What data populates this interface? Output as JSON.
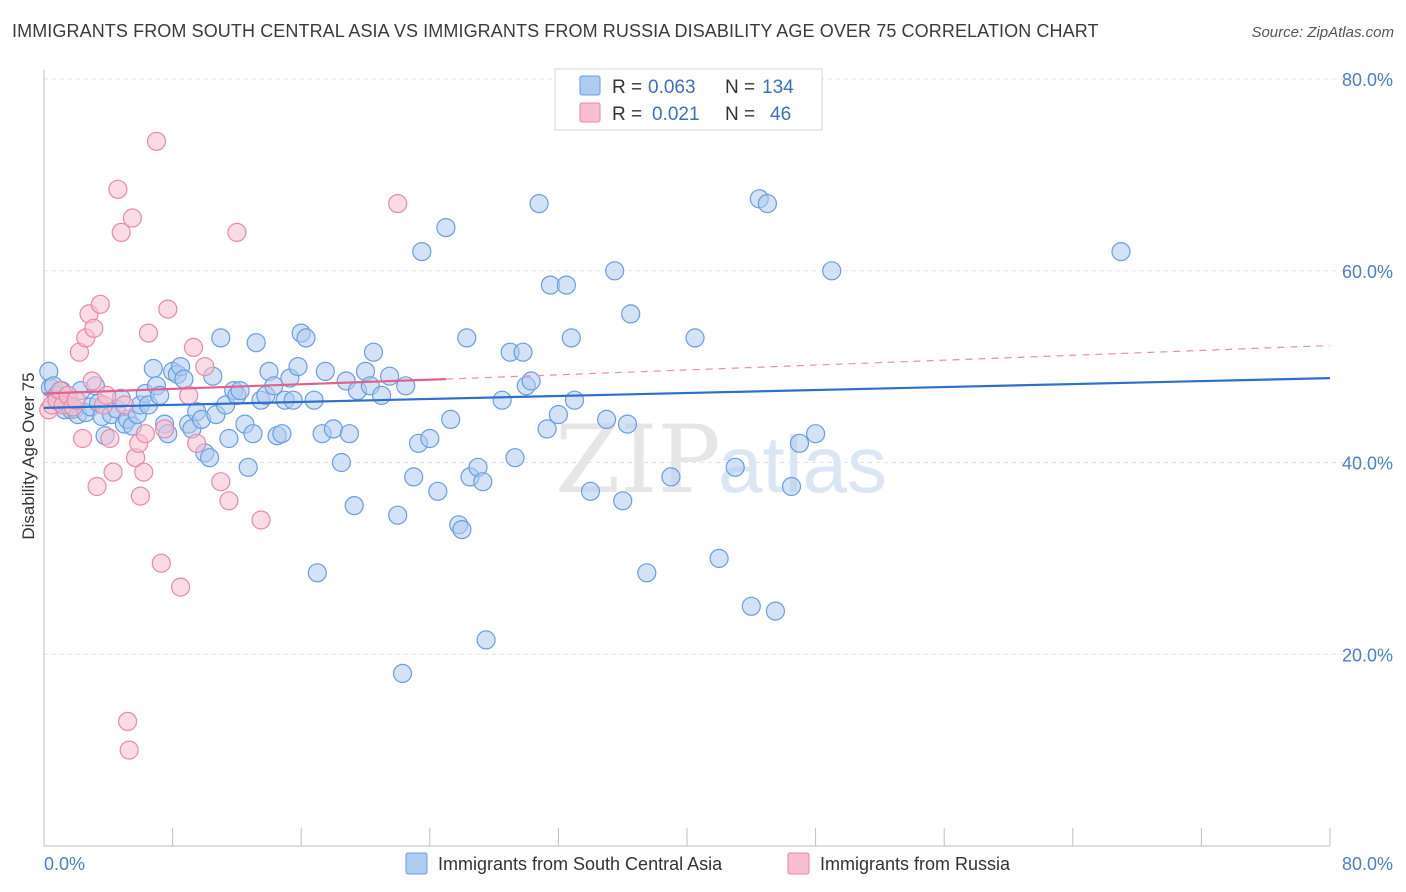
{
  "header": {
    "title": "IMMIGRANTS FROM SOUTH CENTRAL ASIA VS IMMIGRANTS FROM RUSSIA DISABILITY AGE OVER 75 CORRELATION CHART",
    "source": "Source: ZipAtlas.com"
  },
  "watermark": {
    "zip": "ZIP",
    "atlas": "atlas"
  },
  "legend": {
    "r_label": "R =",
    "n_label": "N =",
    "items": [
      {
        "r": "0.063",
        "n": "134",
        "fill": "#aecbf0",
        "stroke": "#6a9ee0"
      },
      {
        "r": "0.021",
        "n": "46",
        "fill": "#f7bfd0",
        "stroke": "#e88aa8"
      }
    ]
  },
  "chart_data": {
    "type": "scatter",
    "title": "IMMIGRANTS FROM SOUTH CENTRAL ASIA VS IMMIGRANTS FROM RUSSIA DISABILITY AGE OVER 75 CORRELATION CHART",
    "xlabel": "",
    "ylabel": "Disability Age Over 75",
    "xlim": [
      0,
      80
    ],
    "ylim": [
      0,
      80
    ],
    "y_ticks": [
      {
        "value": 20,
        "label": "20.0%"
      },
      {
        "value": 40,
        "label": "40.0%"
      },
      {
        "value": 60,
        "label": "60.0%"
      },
      {
        "value": 80,
        "label": "80.0%"
      }
    ],
    "x_tick_labels": {
      "min": "0.0%",
      "max": "80.0%"
    },
    "grid": true,
    "legend_position": "top-center",
    "series": [
      {
        "name": "Immigrants from South Central Asia",
        "color": "#6a9ee0",
        "fill": "#aecbf0",
        "trend": {
          "x": [
            0,
            80
          ],
          "y": [
            45.7,
            48.8
          ]
        },
        "points": [
          [
            0.3,
            49.5
          ],
          [
            0.4,
            47.8
          ],
          [
            0.6,
            48.0
          ],
          [
            0.8,
            47.0
          ],
          [
            1.0,
            46.2
          ],
          [
            1.1,
            47.5
          ],
          [
            1.2,
            46.0
          ],
          [
            1.3,
            45.5
          ],
          [
            1.5,
            46.0
          ],
          [
            1.7,
            45.5
          ],
          [
            1.9,
            45.6
          ],
          [
            2.1,
            45.0
          ],
          [
            2.3,
            47.5
          ],
          [
            2.6,
            45.2
          ],
          [
            2.9,
            45.8
          ],
          [
            3.2,
            48.0
          ],
          [
            3.4,
            46.2
          ],
          [
            3.6,
            44.8
          ],
          [
            3.8,
            42.8
          ],
          [
            4.2,
            45.0
          ],
          [
            4.5,
            45.6
          ],
          [
            4.8,
            46.7
          ],
          [
            5.0,
            44.0
          ],
          [
            5.2,
            44.5
          ],
          [
            5.5,
            43.8
          ],
          [
            5.8,
            45.0
          ],
          [
            6.0,
            46.0
          ],
          [
            6.3,
            47.2
          ],
          [
            6.5,
            46.0
          ],
          [
            6.8,
            49.8
          ],
          [
            7.0,
            48.0
          ],
          [
            7.2,
            47.0
          ],
          [
            7.5,
            44.0
          ],
          [
            7.7,
            43.0
          ],
          [
            8.0,
            49.5
          ],
          [
            8.3,
            49.2
          ],
          [
            8.5,
            50.0
          ],
          [
            8.7,
            48.7
          ],
          [
            9.0,
            44.0
          ],
          [
            9.2,
            43.5
          ],
          [
            9.5,
            45.3
          ],
          [
            9.8,
            44.5
          ],
          [
            10.0,
            41.0
          ],
          [
            10.3,
            40.5
          ],
          [
            10.5,
            49.0
          ],
          [
            10.7,
            45.0
          ],
          [
            11.0,
            53.0
          ],
          [
            11.3,
            46.0
          ],
          [
            11.5,
            42.5
          ],
          [
            11.8,
            47.5
          ],
          [
            12.0,
            47.0
          ],
          [
            12.2,
            47.5
          ],
          [
            12.5,
            44.0
          ],
          [
            12.7,
            39.5
          ],
          [
            13.0,
            43.0
          ],
          [
            13.2,
            52.5
          ],
          [
            13.5,
            46.5
          ],
          [
            13.8,
            47.0
          ],
          [
            14.0,
            49.5
          ],
          [
            14.3,
            48.0
          ],
          [
            14.5,
            42.8
          ],
          [
            14.8,
            43.0
          ],
          [
            15.0,
            46.5
          ],
          [
            15.3,
            48.8
          ],
          [
            15.5,
            46.5
          ],
          [
            15.8,
            50.0
          ],
          [
            16.0,
            53.5
          ],
          [
            16.3,
            53.0
          ],
          [
            16.8,
            46.5
          ],
          [
            17.0,
            28.5
          ],
          [
            17.3,
            43.0
          ],
          [
            17.5,
            49.5
          ],
          [
            18.0,
            43.5
          ],
          [
            18.5,
            40.0
          ],
          [
            18.8,
            48.5
          ],
          [
            19.0,
            43.0
          ],
          [
            19.3,
            35.5
          ],
          [
            19.5,
            47.5
          ],
          [
            20.0,
            49.5
          ],
          [
            20.3,
            48.0
          ],
          [
            20.5,
            51.5
          ],
          [
            21.0,
            47.0
          ],
          [
            21.5,
            49.0
          ],
          [
            22.0,
            34.5
          ],
          [
            22.3,
            18.0
          ],
          [
            22.5,
            48.0
          ],
          [
            23.0,
            38.5
          ],
          [
            23.3,
            42.0
          ],
          [
            23.5,
            62.0
          ],
          [
            24.0,
            42.5
          ],
          [
            24.5,
            37.0
          ],
          [
            25.0,
            64.5
          ],
          [
            25.3,
            44.5
          ],
          [
            25.8,
            33.5
          ],
          [
            26.0,
            33.0
          ],
          [
            26.3,
            53.0
          ],
          [
            26.5,
            38.5
          ],
          [
            27.0,
            39.5
          ],
          [
            27.3,
            38.0
          ],
          [
            27.5,
            21.5
          ],
          [
            28.5,
            46.5
          ],
          [
            29.0,
            51.5
          ],
          [
            29.3,
            40.5
          ],
          [
            29.8,
            51.5
          ],
          [
            30.0,
            48.0
          ],
          [
            30.3,
            48.5
          ],
          [
            30.8,
            67.0
          ],
          [
            31.3,
            43.5
          ],
          [
            31.5,
            58.5
          ],
          [
            32.0,
            45.0
          ],
          [
            32.5,
            58.5
          ],
          [
            32.8,
            53.0
          ],
          [
            33.0,
            46.5
          ],
          [
            34.0,
            37.0
          ],
          [
            35.0,
            44.5
          ],
          [
            35.5,
            60.0
          ],
          [
            36.0,
            36.0
          ],
          [
            36.3,
            44.0
          ],
          [
            36.5,
            55.5
          ],
          [
            37.5,
            28.5
          ],
          [
            38.0,
            77.0
          ],
          [
            39.0,
            38.5
          ],
          [
            40.5,
            53.0
          ],
          [
            42.0,
            30.0
          ],
          [
            43.0,
            39.5
          ],
          [
            44.0,
            25.0
          ],
          [
            44.5,
            67.5
          ],
          [
            45.0,
            67.0
          ],
          [
            45.5,
            24.5
          ],
          [
            46.5,
            37.5
          ],
          [
            47.0,
            42.0
          ],
          [
            48.0,
            43.0
          ],
          [
            49.0,
            60.0
          ],
          [
            67.0,
            62.0
          ]
        ]
      },
      {
        "name": "Immigrants from Russia",
        "color": "#e88aa8",
        "fill": "#f7bfd0",
        "trend": {
          "x": [
            0,
            25
          ],
          "y": [
            47.2,
            48.7
          ]
        },
        "trend_dashed": {
          "x": [
            25,
            80
          ],
          "y": [
            48.7,
            52.2
          ]
        },
        "points": [
          [
            0.3,
            45.5
          ],
          [
            0.5,
            46.0
          ],
          [
            0.8,
            46.5
          ],
          [
            1.0,
            47.5
          ],
          [
            1.2,
            46.0
          ],
          [
            1.5,
            47.0
          ],
          [
            1.8,
            45.8
          ],
          [
            2.0,
            46.5
          ],
          [
            2.2,
            51.5
          ],
          [
            2.4,
            42.5
          ],
          [
            2.6,
            53.0
          ],
          [
            2.8,
            55.5
          ],
          [
            3.0,
            48.5
          ],
          [
            3.1,
            54.0
          ],
          [
            3.3,
            37.5
          ],
          [
            3.5,
            56.5
          ],
          [
            3.7,
            46.0
          ],
          [
            3.9,
            47.0
          ],
          [
            4.1,
            42.5
          ],
          [
            4.3,
            39.0
          ],
          [
            4.6,
            68.5
          ],
          [
            4.8,
            64.0
          ],
          [
            5.0,
            46.0
          ],
          [
            5.2,
            13.0
          ],
          [
            5.3,
            10.0
          ],
          [
            5.5,
            65.5
          ],
          [
            5.7,
            40.5
          ],
          [
            5.9,
            42.0
          ],
          [
            6.0,
            36.5
          ],
          [
            6.2,
            39.0
          ],
          [
            6.3,
            43.0
          ],
          [
            6.5,
            53.5
          ],
          [
            7.0,
            73.5
          ],
          [
            7.3,
            29.5
          ],
          [
            7.5,
            43.5
          ],
          [
            7.7,
            56.0
          ],
          [
            8.5,
            27.0
          ],
          [
            9.0,
            47.0
          ],
          [
            9.3,
            52.0
          ],
          [
            9.5,
            42.0
          ],
          [
            10.0,
            50.0
          ],
          [
            11.0,
            38.0
          ],
          [
            11.5,
            36.0
          ],
          [
            12.0,
            64.0
          ],
          [
            13.5,
            34.0
          ],
          [
            22.0,
            67.0
          ]
        ]
      }
    ]
  }
}
